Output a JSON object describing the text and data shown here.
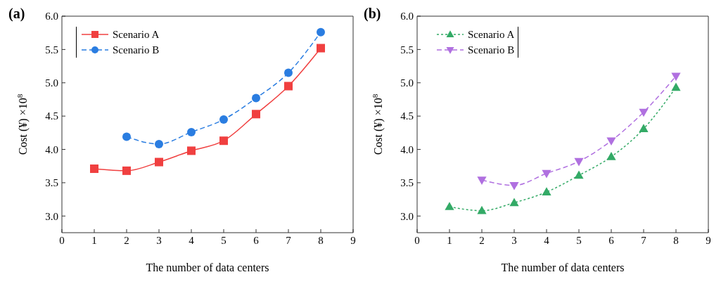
{
  "chart_data": [
    {
      "type": "line",
      "title": "(a)",
      "xlabel": "The number of data centers",
      "ylabel": "Cost (¥) ×10$^{8}$",
      "xlim": [
        0,
        9
      ],
      "xticks": [
        0,
        1,
        2,
        3,
        4,
        5,
        6,
        7,
        8,
        9
      ],
      "ylim": [
        2.75,
        6
      ],
      "yticks": [
        {
          "value": 3,
          "label": "3.0"
        },
        {
          "value": 3.5,
          "label": "3.5"
        },
        {
          "value": 4,
          "label": "4.0"
        },
        {
          "value": 4.5,
          "label": "4.5"
        },
        {
          "value": 5,
          "label": "5.0"
        },
        {
          "value": 5.5,
          "label": "5.5"
        },
        {
          "value": 6,
          "label": "6.0"
        }
      ],
      "legend": "top left",
      "grid": false,
      "series": [
        {
          "name": "Scenario A",
          "color": "#f04040",
          "marker": "square",
          "line_style": "solid",
          "x": [
            1,
            2,
            3,
            4,
            5,
            6,
            7,
            8
          ],
          "values": [
            3.71,
            3.68,
            3.81,
            3.98,
            4.13,
            4.53,
            4.95,
            5.52
          ]
        },
        {
          "name": "Scenario B",
          "color": "#2a7de1",
          "marker": "circle",
          "line_style": "dashed",
          "x": [
            2,
            3,
            4,
            5,
            6,
            7,
            8
          ],
          "values": [
            4.19,
            4.08,
            4.26,
            4.45,
            4.77,
            5.15,
            5.76
          ]
        }
      ]
    },
    {
      "type": "line",
      "title": "(b)",
      "xlabel": "The number of data centers",
      "ylabel": "Cost (¥) ×10$^{8}$",
      "xlim": [
        0,
        9
      ],
      "xticks": [
        0,
        1,
        2,
        3,
        4,
        5,
        6,
        7,
        8,
        9
      ],
      "ylim": [
        2.75,
        6
      ],
      "yticks": [
        {
          "value": 3,
          "label": "3.0"
        },
        {
          "value": 3.5,
          "label": "3.5"
        },
        {
          "value": 4,
          "label": "4.0"
        },
        {
          "value": 4.5,
          "label": "4.5"
        },
        {
          "value": 5,
          "label": "5.0"
        },
        {
          "value": 5.5,
          "label": "5.5"
        },
        {
          "value": 6,
          "label": "6.0"
        }
      ],
      "legend": "top left",
      "grid": false,
      "series": [
        {
          "name": "Scenario A",
          "color": "#33aa66",
          "marker": "triangle",
          "line_style": "dotted",
          "x": [
            1,
            2,
            3,
            4,
            5,
            6,
            7,
            8
          ],
          "values": [
            3.14,
            3.08,
            3.2,
            3.36,
            3.61,
            3.89,
            4.31,
            4.93
          ]
        },
        {
          "name": "Scenario B",
          "color": "#b070e0",
          "marker": "triangle-down",
          "line_style": "dashed",
          "x": [
            2,
            3,
            4,
            5,
            6,
            7,
            8
          ],
          "values": [
            3.54,
            3.46,
            3.64,
            3.82,
            4.13,
            4.56,
            5.1
          ]
        }
      ]
    }
  ]
}
